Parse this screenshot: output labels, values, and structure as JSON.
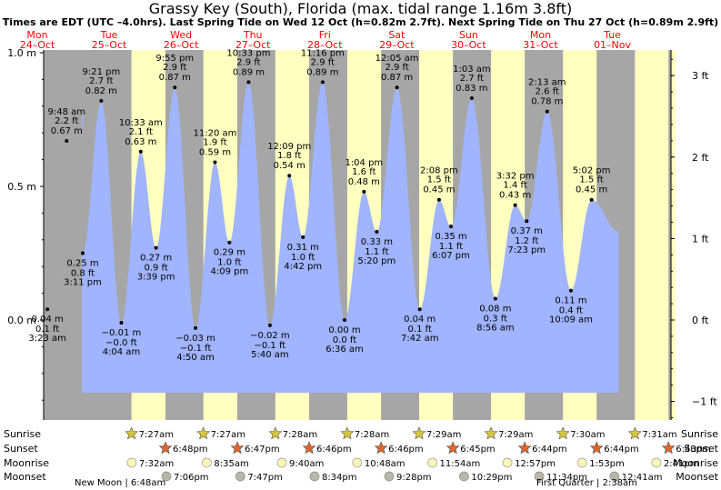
{
  "title": "Grassy Key (South), Florida (max. tidal range 1.16m 3.8ft)",
  "subtitle": "Times are EDT (UTC –4.0hrs). Last Spring Tide on Wed 12 Oct (h=0.82m 2.7ft). Next Spring Tide on Thu 27 Oct (h=0.89m 2.9ft)",
  "colors": {
    "day": "#ffffc0",
    "night": "#a6a6a6",
    "water": "#a0b4ff",
    "weekend_text": "#ff0000",
    "weekday_text": "#000000"
  },
  "chart_data": {
    "type": "area",
    "title": "Grassy Key (South), Florida (max. tidal range 1.16m 3.8ft)",
    "ylabel_left_unit": "m",
    "ylabel_right_unit": "ft",
    "ylim_m": [
      -0.36,
      1.02
    ],
    "left_ticks": [
      "1.0 m",
      "0.5 m",
      "0.0 m"
    ],
    "left_tick_values": [
      1.0,
      0.5,
      0.0
    ],
    "right_ticks": [
      "3 ft",
      "2 ft",
      "1 ft",
      "0 ft",
      "−1 ft"
    ],
    "right_tick_values": [
      3,
      2,
      1,
      0,
      -1
    ],
    "x_start": "Mon 24 Oct 00:00",
    "x_end": "Wed 02 Nov 00:00",
    "days": [
      {
        "dow": "Mon",
        "date": "24–Oct",
        "weekend": true
      },
      {
        "dow": "Tue",
        "date": "25–Oct",
        "weekend": true
      },
      {
        "dow": "Wed",
        "date": "26–Oct",
        "weekend": true
      },
      {
        "dow": "Thu",
        "date": "27–Oct",
        "weekend": true
      },
      {
        "dow": "Fri",
        "date": "28–Oct",
        "weekend": true
      },
      {
        "dow": "Sat",
        "date": "29–Oct",
        "weekend": true
      },
      {
        "dow": "Sun",
        "date": "30–Oct",
        "weekend": true
      },
      {
        "dow": "Mon",
        "date": "31–Oct",
        "weekend": true
      },
      {
        "dow": "Tue",
        "date": "01–Nov",
        "weekend": true
      }
    ],
    "tides": [
      {
        "time": "3:23 am",
        "day": 0,
        "h_m": 0.04,
        "m": "0.04 m",
        "ft": "0.1 ft",
        "type": "low"
      },
      {
        "time": "9:48 am",
        "day": 0,
        "h_m": 0.67,
        "m": "0.67 m",
        "ft": "2.2 ft",
        "type": "high"
      },
      {
        "time": "3:11 pm",
        "day": 0,
        "h_m": 0.25,
        "m": "0.25 m",
        "ft": "0.8 ft",
        "type": "low"
      },
      {
        "time": "9:21 pm",
        "day": 0,
        "h_m": 0.82,
        "m": "0.82 m",
        "ft": "2.7 ft",
        "type": "high"
      },
      {
        "time": "4:04 am",
        "day": 1,
        "h_m": -0.01,
        "m": "−0.01 m",
        "ft": "−0.0 ft",
        "type": "low"
      },
      {
        "time": "10:33 am",
        "day": 1,
        "h_m": 0.63,
        "m": "0.63 m",
        "ft": "2.1 ft",
        "type": "high"
      },
      {
        "time": "3:39 pm",
        "day": 1,
        "h_m": 0.27,
        "m": "0.27 m",
        "ft": "0.9 ft",
        "type": "low"
      },
      {
        "time": "9:55 pm",
        "day": 1,
        "h_m": 0.87,
        "m": "0.87 m",
        "ft": "2.9 ft",
        "type": "high"
      },
      {
        "time": "4:50 am",
        "day": 2,
        "h_m": -0.03,
        "m": "−0.03 m",
        "ft": "−0.1 ft",
        "type": "low"
      },
      {
        "time": "11:20 am",
        "day": 2,
        "h_m": 0.59,
        "m": "0.59 m",
        "ft": "1.9 ft",
        "type": "high"
      },
      {
        "time": "4:09 pm",
        "day": 2,
        "h_m": 0.29,
        "m": "0.29 m",
        "ft": "1.0 ft",
        "type": "low"
      },
      {
        "time": "10:33 pm",
        "day": 2,
        "h_m": 0.89,
        "m": "0.89 m",
        "ft": "2.9 ft",
        "type": "high"
      },
      {
        "time": "5:40 am",
        "day": 3,
        "h_m": -0.02,
        "m": "−0.02 m",
        "ft": "−0.1 ft",
        "type": "low"
      },
      {
        "time": "12:09 pm",
        "day": 3,
        "h_m": 0.54,
        "m": "0.54 m",
        "ft": "1.8 ft",
        "type": "high"
      },
      {
        "time": "4:42 pm",
        "day": 3,
        "h_m": 0.31,
        "m": "0.31 m",
        "ft": "1.0 ft",
        "type": "low"
      },
      {
        "time": "11:16 pm",
        "day": 3,
        "h_m": 0.89,
        "m": "0.89 m",
        "ft": "2.9 ft",
        "type": "high"
      },
      {
        "time": "6:36 am",
        "day": 4,
        "h_m": 0.0,
        "m": "0.00 m",
        "ft": "0.0 ft",
        "type": "low"
      },
      {
        "time": "1:04 pm",
        "day": 4,
        "h_m": 0.48,
        "m": "0.48 m",
        "ft": "1.6 ft",
        "type": "high"
      },
      {
        "time": "5:20 pm",
        "day": 4,
        "h_m": 0.33,
        "m": "0.33 m",
        "ft": "1.1 ft",
        "type": "low"
      },
      {
        "time": "12:05 am",
        "day": 5,
        "h_m": 0.87,
        "m": "0.87 m",
        "ft": "2.9 ft",
        "type": "high"
      },
      {
        "time": "7:42 am",
        "day": 5,
        "h_m": 0.04,
        "m": "0.04 m",
        "ft": "0.1 ft",
        "type": "low"
      },
      {
        "time": "2:08 pm",
        "day": 5,
        "h_m": 0.45,
        "m": "0.45 m",
        "ft": "1.5 ft",
        "type": "high"
      },
      {
        "time": "6:07 pm",
        "day": 5,
        "h_m": 0.35,
        "m": "0.35 m",
        "ft": "1.1 ft",
        "type": "low"
      },
      {
        "time": "1:03 am",
        "day": 6,
        "h_m": 0.83,
        "m": "0.83 m",
        "ft": "2.7 ft",
        "type": "high"
      },
      {
        "time": "8:56 am",
        "day": 6,
        "h_m": 0.08,
        "m": "0.08 m",
        "ft": "0.3 ft",
        "type": "low"
      },
      {
        "time": "3:32 pm",
        "day": 6,
        "h_m": 0.43,
        "m": "0.43 m",
        "ft": "1.4 ft",
        "type": "high"
      },
      {
        "time": "7:23 pm",
        "day": 6,
        "h_m": 0.37,
        "m": "0.37 m",
        "ft": "1.2 ft",
        "type": "low"
      },
      {
        "time": "2:13 am",
        "day": 7,
        "h_m": 0.78,
        "m": "0.78 m",
        "ft": "2.6 ft",
        "type": "high"
      },
      {
        "time": "10:09 am",
        "day": 7,
        "h_m": 0.11,
        "m": "0.11 m",
        "ft": "0.4 ft",
        "type": "low"
      },
      {
        "time": "5:02 pm",
        "day": 7,
        "h_m": 0.45,
        "m": "0.45 m",
        "ft": "1.5 ft",
        "type": "high"
      }
    ],
    "sun_moon": {
      "row_labels": [
        "Sunrise",
        "Sunset",
        "Moonrise",
        "Moonset"
      ],
      "sunrise": [
        "7:27am",
        "7:27am",
        "7:28am",
        "7:28am",
        "7:29am",
        "7:29am",
        "7:30am",
        "7:31am"
      ],
      "sunset": [
        "6:48pm",
        "6:47pm",
        "6:46pm",
        "6:46pm",
        "6:45pm",
        "6:44pm",
        "6:44pm",
        "6:43pm"
      ],
      "moonrise": [
        "7:32am",
        "8:35am",
        "9:40am",
        "10:48am",
        "11:54am",
        "12:57pm",
        "1:53pm",
        "2:41pm"
      ],
      "moonset": [
        "7:06pm",
        "7:47pm",
        "8:34pm",
        "9:28pm",
        "10:29pm",
        "11:34pm",
        "12:41am"
      ],
      "moon_phases": [
        "New Moon | 6:48am",
        "First Quarter | 2:38am"
      ]
    }
  }
}
